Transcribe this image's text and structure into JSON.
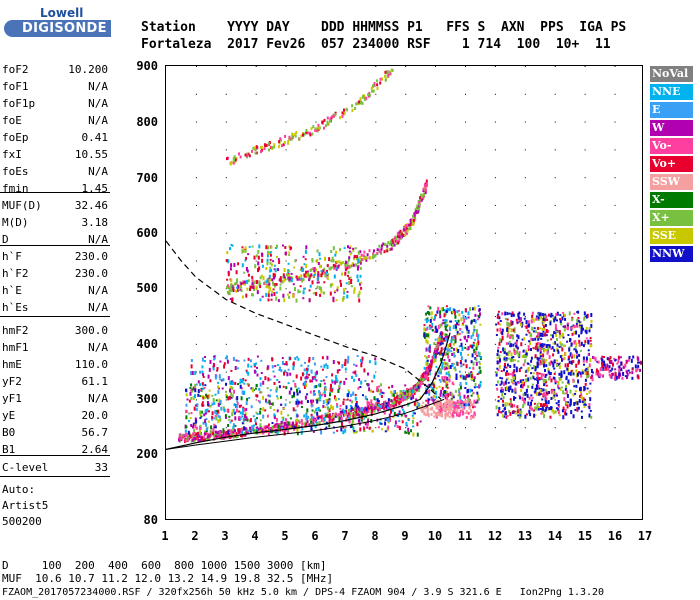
{
  "logo": {
    "brand": "Lowell",
    "product": "DIGISONDE"
  },
  "header": {
    "line1": "Station    YYYY DAY    DDD HHMMSS P1   FFS S  AXN  PPS  IGA PS",
    "line2": "Fortaleza  2017 Fev26  057 234000 RSF    1 714  100  10+  11"
  },
  "params": [
    {
      "k": "foF2",
      "v": "10.200"
    },
    {
      "k": "foF1",
      "v": "N/A"
    },
    {
      "k": "foF1p",
      "v": "N/A"
    },
    {
      "k": "foE",
      "v": "N/A"
    },
    {
      "k": "foEp",
      "v": "0.41"
    },
    {
      "k": "fxI",
      "v": "10.55"
    },
    {
      "k": "foEs",
      "v": "N/A"
    },
    {
      "k": "fmin",
      "v": "1.45"
    },
    {
      "k": "MUF(D)",
      "v": "32.46"
    },
    {
      "k": "M(D)",
      "v": "3.18"
    },
    {
      "k": "D",
      "v": "N/A"
    },
    {
      "k": "h`F",
      "v": "230.0"
    },
    {
      "k": "h`F2",
      "v": "230.0"
    },
    {
      "k": "h`E",
      "v": "N/A"
    },
    {
      "k": "h`Es",
      "v": "N/A"
    },
    {
      "k": "hmF2",
      "v": "300.0"
    },
    {
      "k": "hmF1",
      "v": "N/A"
    },
    {
      "k": "hmE",
      "v": "110.0"
    },
    {
      "k": "yF2",
      "v": "61.1"
    },
    {
      "k": "yF1",
      "v": "N/A"
    },
    {
      "k": "yE",
      "v": "20.0"
    },
    {
      "k": "B0",
      "v": "56.7"
    },
    {
      "k": "B1",
      "v": "2.64"
    },
    {
      "k": "C-level",
      "v": "33"
    }
  ],
  "auto": {
    "l1": "Auto:",
    "l2": "Artist5",
    "l3": "500200"
  },
  "legend": [
    {
      "label": "NoVal",
      "color": "#808080"
    },
    {
      "label": "NNE",
      "color": "#00b2ee"
    },
    {
      "label": "E",
      "color": "#3aa0f5"
    },
    {
      "label": "W",
      "color": "#b000b0"
    },
    {
      "label": "Vo-",
      "color": "#ff3fa0"
    },
    {
      "label": "Vo+",
      "color": "#e8002e"
    },
    {
      "label": "SSW",
      "color": "#f5a0a0"
    },
    {
      "label": "X-",
      "color": "#007a00"
    },
    {
      "label": "X+",
      "color": "#78c040"
    },
    {
      "label": "SSE",
      "color": "#c8c800"
    },
    {
      "label": "NNW",
      "color": "#1010c8"
    }
  ],
  "axes": {
    "y_ticks": [
      "900",
      "800",
      "700",
      "600",
      "500",
      "400",
      "300",
      "200",
      "80"
    ],
    "x_ticks": [
      "1",
      "2",
      "3",
      "4",
      "5",
      "6",
      "7",
      "8",
      "9",
      "10",
      "11",
      "12",
      "13",
      "14",
      "15",
      "16",
      "17"
    ]
  },
  "footer": {
    "line1": "D     100  200  400  600  800 1000 1500 3000 [km]",
    "line2": "MUF  10.6 10.7 11.2 12.0 13.2 14.9 19.8 32.5 [MHz]",
    "line3": "FZAOM_2017057234000.RSF / 320fx256h 50 kHz 5.0 km / DPS-4 FZAOM 904 / 3.9 S 321.6 E   Ion2Png 1.3.20"
  }
}
